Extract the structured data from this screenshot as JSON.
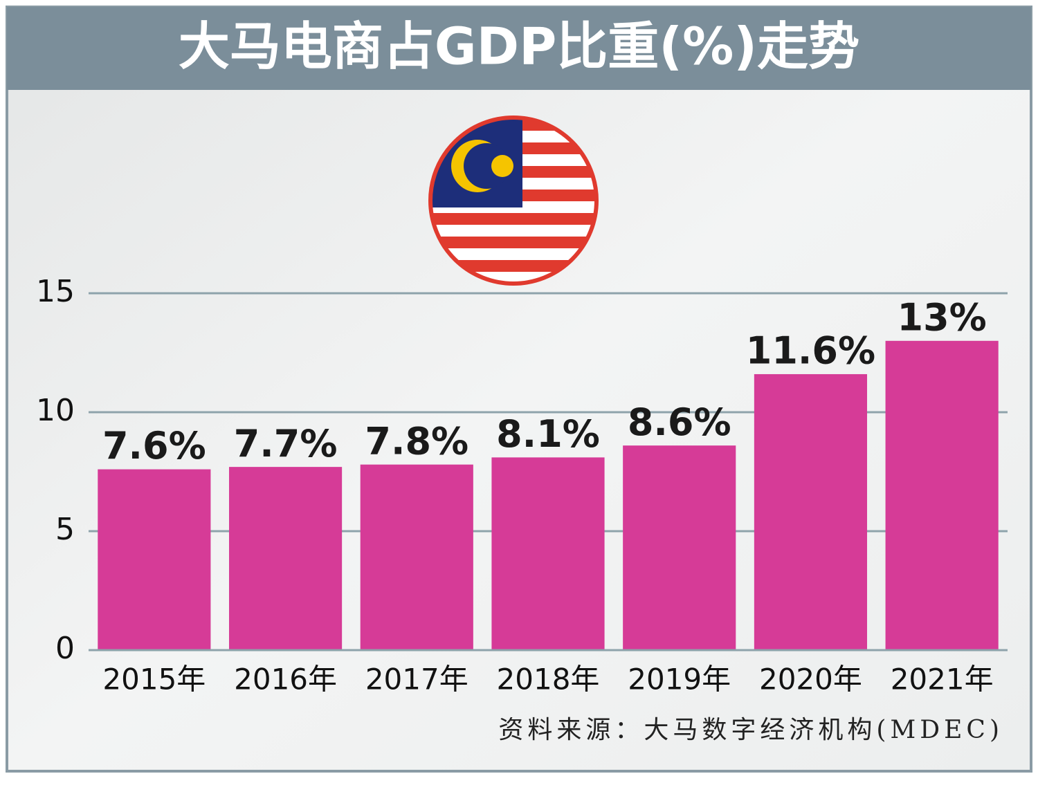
{
  "chart_data": {
    "type": "bar",
    "title": "大马电商占GDP比重(%)走势",
    "source": "资料来源：大马数字经济机构(MDEC)",
    "categories": [
      "2015年",
      "2016年",
      "2017年",
      "2018年",
      "2019年",
      "2020年",
      "2021年"
    ],
    "values": [
      7.6,
      7.7,
      7.8,
      8.1,
      8.6,
      11.6,
      13
    ],
    "value_labels": [
      "7.6%",
      "7.7%",
      "7.8%",
      "8.1%",
      "8.6%",
      "11.6%",
      "13%"
    ],
    "color": "#d63b97",
    "ylim": [
      0,
      15
    ],
    "yticks": [
      0,
      5,
      10,
      15
    ],
    "grid": true
  }
}
